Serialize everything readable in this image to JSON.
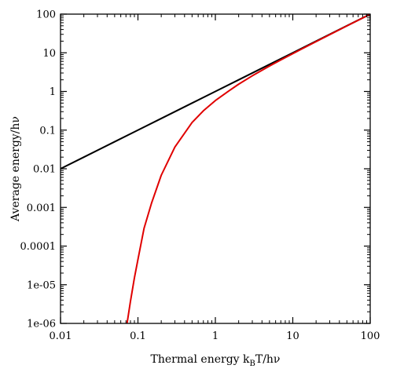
{
  "chart_data": {
    "type": "line",
    "xscale": "log",
    "yscale": "log",
    "xlim": [
      0.01,
      100
    ],
    "ylim": [
      1e-06,
      100
    ],
    "xticks": [
      {
        "value": 0.01,
        "label": "0.01"
      },
      {
        "value": 0.1,
        "label": "0.1"
      },
      {
        "value": 1,
        "label": "1"
      },
      {
        "value": 10,
        "label": "10"
      },
      {
        "value": 100,
        "label": "100"
      }
    ],
    "yticks": [
      {
        "value": 1e-06,
        "label": "1e-06"
      },
      {
        "value": 1e-05,
        "label": "1e-05"
      },
      {
        "value": 0.0001,
        "label": "0.0001"
      },
      {
        "value": 0.001,
        "label": "0.001"
      },
      {
        "value": 0.01,
        "label": "0.01"
      },
      {
        "value": 0.1,
        "label": "0.1"
      },
      {
        "value": 1,
        "label": "1"
      },
      {
        "value": 10,
        "label": "10"
      },
      {
        "value": 100,
        "label": "100"
      }
    ],
    "xlabel": {
      "pre": "Thermal energy k",
      "sub": "B",
      "post": "T/hν"
    },
    "ylabel": "Average energy/hν",
    "grid": false,
    "series": [
      {
        "color": "#000000",
        "x": [
          0.01,
          0.02,
          0.05,
          0.1,
          0.2,
          0.5,
          1,
          2,
          5,
          10,
          20,
          50,
          100
        ],
        "y": [
          0.01,
          0.02,
          0.05,
          0.1,
          0.2,
          0.5,
          1,
          2,
          5,
          10,
          20,
          50,
          100
        ]
      },
      {
        "color": "#e00000",
        "x": [
          0.072,
          0.08,
          0.09,
          0.1,
          0.12,
          0.15,
          0.2,
          0.3,
          0.5,
          0.7,
          1,
          1.5,
          2,
          3,
          5,
          7,
          10,
          20,
          50,
          100
        ],
        "y": [
          9.4e-07,
          3.7e-06,
          1.5e-05,
          4.5e-05,
          0.00029,
          0.0013,
          0.0068,
          0.0365,
          0.157,
          0.316,
          0.582,
          1.037,
          1.541,
          2.541,
          4.542,
          6.542,
          9.508,
          19.504,
          49.502,
          99.501
        ]
      }
    ]
  }
}
